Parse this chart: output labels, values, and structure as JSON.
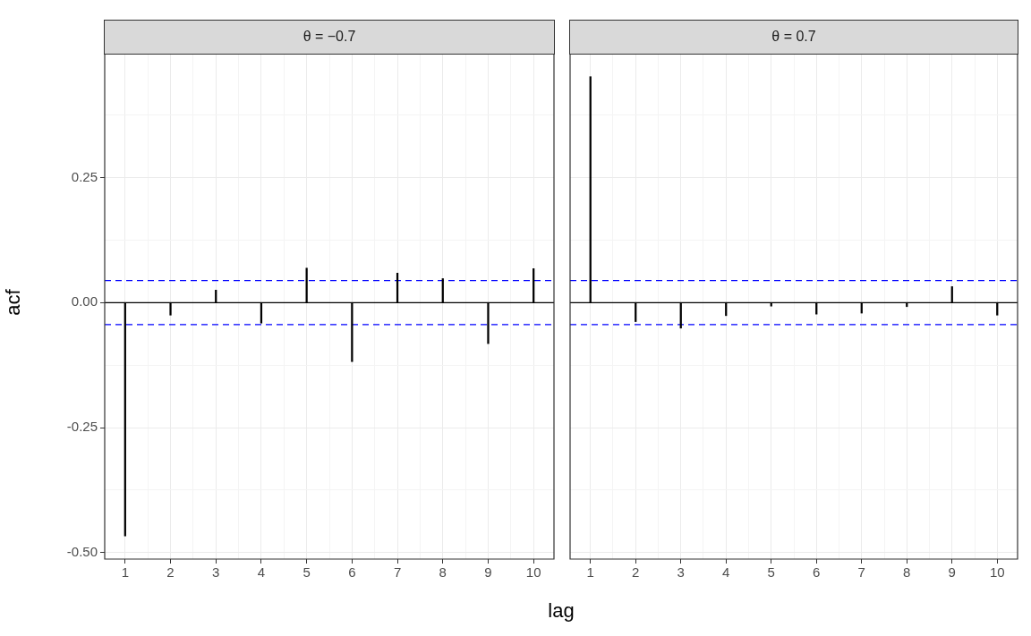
{
  "chart_data": [
    {
      "type": "bar",
      "title": "θ = −0.7",
      "xlabel": "lag",
      "ylabel": "acf",
      "grid": true,
      "x": [
        1,
        2,
        3,
        4,
        5,
        6,
        7,
        8,
        9,
        10
      ],
      "xlim": [
        0.55,
        10.45
      ],
      "xticks": [
        1,
        {
          "value": 1.5,
          "label": null
        },
        2,
        {
          "value": 2.5,
          "label": null
        },
        3,
        {
          "value": 3.5,
          "label": null
        },
        4,
        {
          "value": 4.5,
          "label": null
        },
        5,
        {
          "value": 5.5,
          "label": null
        },
        6,
        {
          "value": 6.5,
          "label": null
        },
        7,
        {
          "value": 7.5,
          "label": null
        },
        8,
        {
          "value": 8.5,
          "label": null
        },
        9,
        {
          "value": 9.5,
          "label": null
        },
        10
      ],
      "ylim": [
        -0.513,
        0.498
      ],
      "yticks": [
        {
          "value": -0.5,
          "label": "-0.50"
        },
        {
          "value": -0.375,
          "label": null
        },
        {
          "value": -0.25,
          "label": "-0.25"
        },
        {
          "value": -0.125,
          "label": null
        },
        {
          "value": 0,
          "label": "0.00"
        },
        {
          "value": 0.125,
          "label": null
        },
        {
          "value": 0.25,
          "label": "0.25"
        },
        {
          "value": 0.375,
          "label": null
        }
      ],
      "series": [
        {
          "color": "#000000",
          "values": [
            -0.467,
            -0.025,
            0.025,
            -0.041,
            0.069,
            -0.118,
            0.059,
            0.048,
            -0.082,
            0.068
          ]
        }
      ],
      "ref_lines": [
        {
          "axis": "y",
          "value": 0,
          "color": "#000000",
          "line_style": "solid"
        },
        {
          "axis": "y",
          "value": 0.044,
          "color": "#0000ff",
          "line_style": "dashed"
        },
        {
          "axis": "y",
          "value": -0.044,
          "color": "#0000ff",
          "line_style": "dashed"
        }
      ]
    },
    {
      "type": "bar",
      "title": "θ = 0.7",
      "grid": true,
      "tick_labels": "x",
      "x": [
        1,
        2,
        3,
        4,
        5,
        6,
        7,
        8,
        9,
        10
      ],
      "xlim": [
        0.55,
        10.45
      ],
      "xticks": [
        1,
        {
          "value": 1.5,
          "label": null
        },
        2,
        {
          "value": 2.5,
          "label": null
        },
        3,
        {
          "value": 3.5,
          "label": null
        },
        4,
        {
          "value": 4.5,
          "label": null
        },
        5,
        {
          "value": 5.5,
          "label": null
        },
        6,
        {
          "value": 6.5,
          "label": null
        },
        7,
        {
          "value": 7.5,
          "label": null
        },
        8,
        {
          "value": 8.5,
          "label": null
        },
        9,
        {
          "value": 9.5,
          "label": null
        },
        10
      ],
      "ylim": [
        -0.513,
        0.498
      ],
      "yticks": [
        -0.5,
        {
          "value": -0.375,
          "label": null
        },
        -0.25,
        {
          "value": -0.125,
          "label": null
        },
        0,
        {
          "value": 0.125,
          "label": null
        },
        0.25,
        {
          "value": 0.375,
          "label": null
        }
      ],
      "series": [
        {
          "color": "#000000",
          "values": [
            0.452,
            -0.038,
            -0.051,
            -0.026,
            -0.007,
            -0.023,
            -0.021,
            -0.008,
            0.032,
            -0.025
          ]
        }
      ],
      "ref_lines": [
        {
          "axis": "y",
          "value": 0,
          "color": "#000000",
          "line_style": "solid"
        },
        {
          "axis": "y",
          "value": 0.044,
          "color": "#0000ff",
          "line_style": "dashed"
        },
        {
          "axis": "y",
          "value": -0.044,
          "color": "#0000ff",
          "line_style": "dashed"
        }
      ]
    }
  ]
}
